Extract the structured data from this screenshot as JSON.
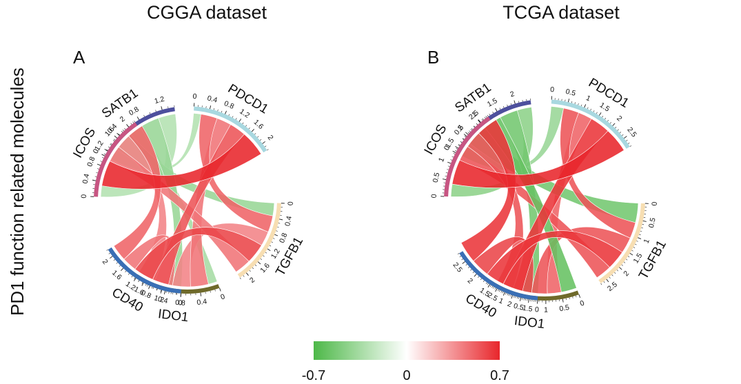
{
  "figure": {
    "ylabel": "PD1 function related molecules",
    "colorbar": {
      "min": -0.7,
      "max": 0.7,
      "tick_labels": [
        "-0.7",
        "0",
        "0.7"
      ],
      "colors": [
        "#4db848",
        "#ffffff",
        "#e8262b"
      ]
    }
  },
  "chart_data": [
    {
      "type": "chord",
      "panel": "A",
      "title": "CGGA dataset",
      "segments": [
        {
          "name": "SATB1",
          "total": 1.4,
          "color": "#4d4f9d",
          "tick_labels": [
            "0",
            "0.4",
            "0.8",
            "1.2"
          ]
        },
        {
          "name": "PDCD1",
          "total": 2.2,
          "color": "#a8d8e0",
          "tick_labels": [
            "0",
            "0.4",
            "0.8",
            "1.2",
            "1.6",
            "2"
          ]
        },
        {
          "name": "TGFB1",
          "total": 2.2,
          "color": "#f7deb2",
          "tick_labels": [
            "0",
            "0.4",
            "0.8",
            "1.2",
            "1.6",
            "2"
          ]
        },
        {
          "name": "IDO1",
          "total": 1.8,
          "color": "#6f6a2b",
          "tick_labels": [
            "0",
            "0.4",
            "0.8",
            "1.2",
            "1.6"
          ]
        },
        {
          "name": "CD40",
          "total": 2.2,
          "color": "#3a6fb5",
          "tick_labels": [
            "0",
            "0.4",
            "0.8",
            "1.2",
            "1.6",
            "2"
          ]
        },
        {
          "name": "ICOS",
          "total": 2.2,
          "color": "#c75582",
          "tick_labels": [
            "0",
            "0.4",
            "0.8",
            "1.2",
            "1.6",
            "2"
          ]
        }
      ],
      "links": [
        {
          "from": "SATB1",
          "to": "PDCD1",
          "value": 0.2,
          "corr": -0.3
        },
        {
          "from": "SATB1",
          "to": "TGFB1",
          "value": 0.35,
          "corr": -0.4
        },
        {
          "from": "SATB1",
          "to": "IDO1",
          "value": 0.2,
          "corr": -0.35
        },
        {
          "from": "SATB1",
          "to": "CD40",
          "value": 0.35,
          "corr": -0.4
        },
        {
          "from": "SATB1",
          "to": "ICOS",
          "value": 0.3,
          "corr": -0.3
        },
        {
          "from": "PDCD1",
          "to": "TGFB1",
          "value": 0.45,
          "corr": 0.5
        },
        {
          "from": "PDCD1",
          "to": "IDO1",
          "value": 0.4,
          "corr": 0.45
        },
        {
          "from": "PDCD1",
          "to": "CD40",
          "value": 0.45,
          "corr": 0.55
        },
        {
          "from": "PDCD1",
          "to": "ICOS",
          "value": 0.7,
          "corr": 0.7
        },
        {
          "from": "TGFB1",
          "to": "IDO1",
          "value": 0.4,
          "corr": 0.4
        },
        {
          "from": "TGFB1",
          "to": "CD40",
          "value": 0.55,
          "corr": 0.6
        },
        {
          "from": "TGFB1",
          "to": "ICOS",
          "value": 0.45,
          "corr": 0.45
        },
        {
          "from": "IDO1",
          "to": "CD40",
          "value": 0.4,
          "corr": 0.45
        },
        {
          "from": "IDO1",
          "to": "ICOS",
          "value": 0.4,
          "corr": 0.4
        },
        {
          "from": "CD40",
          "to": "ICOS",
          "value": 0.45,
          "corr": 0.5
        }
      ]
    },
    {
      "type": "chord",
      "panel": "B",
      "title": "TCGA dataset",
      "segments": [
        {
          "name": "SATB1",
          "total": 2.4,
          "color": "#4d4f9d",
          "tick_labels": [
            "0",
            "0.5",
            "1",
            "1.5",
            "2"
          ]
        },
        {
          "name": "PDCD1",
          "total": 2.8,
          "color": "#a8d8e0",
          "tick_labels": [
            "0",
            "0.5",
            "1",
            "1.5",
            "2",
            "2.5"
          ]
        },
        {
          "name": "TGFB1",
          "total": 2.7,
          "color": "#f7deb2",
          "tick_labels": [
            "0",
            "0.5",
            "1",
            "1.5",
            "2",
            "2.5"
          ]
        },
        {
          "name": "IDO1",
          "total": 2.8,
          "color": "#6f6a2b",
          "tick_labels": [
            "0",
            "0.5",
            "1",
            "1.5",
            "2",
            "2.5"
          ]
        },
        {
          "name": "CD40",
          "total": 2.8,
          "color": "#3a6fb5",
          "tick_labels": [
            "0",
            "0.5",
            "1",
            "1.5",
            "2",
            "2.5"
          ]
        },
        {
          "name": "ICOS",
          "total": 2.8,
          "color": "#c75582",
          "tick_labels": [
            "0",
            "0.5",
            "1",
            "1.5",
            "2",
            "2.5"
          ]
        }
      ],
      "links": [
        {
          "from": "SATB1",
          "to": "PDCD1",
          "value": 0.4,
          "corr": -0.4
        },
        {
          "from": "SATB1",
          "to": "TGFB1",
          "value": 0.6,
          "corr": -0.55
        },
        {
          "from": "SATB1",
          "to": "IDO1",
          "value": 0.5,
          "corr": -0.6
        },
        {
          "from": "SATB1",
          "to": "CD40",
          "value": 0.5,
          "corr": -0.55
        },
        {
          "from": "SATB1",
          "to": "ICOS",
          "value": 0.4,
          "corr": -0.45
        },
        {
          "from": "PDCD1",
          "to": "TGFB1",
          "value": 0.5,
          "corr": 0.55
        },
        {
          "from": "PDCD1",
          "to": "IDO1",
          "value": 0.45,
          "corr": 0.5
        },
        {
          "from": "PDCD1",
          "to": "CD40",
          "value": 0.65,
          "corr": 0.65
        },
        {
          "from": "PDCD1",
          "to": "ICOS",
          "value": 0.8,
          "corr": 0.7
        },
        {
          "from": "TGFB1",
          "to": "IDO1",
          "value": 0.5,
          "corr": 0.55
        },
        {
          "from": "TGFB1",
          "to": "CD40",
          "value": 0.6,
          "corr": 0.65
        },
        {
          "from": "TGFB1",
          "to": "ICOS",
          "value": 0.5,
          "corr": 0.55
        },
        {
          "from": "IDO1",
          "to": "CD40",
          "value": 0.6,
          "corr": 0.6
        },
        {
          "from": "IDO1",
          "to": "ICOS",
          "value": 0.55,
          "corr": 0.55
        },
        {
          "from": "CD40",
          "to": "ICOS",
          "value": 0.7,
          "corr": 0.65
        }
      ]
    }
  ]
}
